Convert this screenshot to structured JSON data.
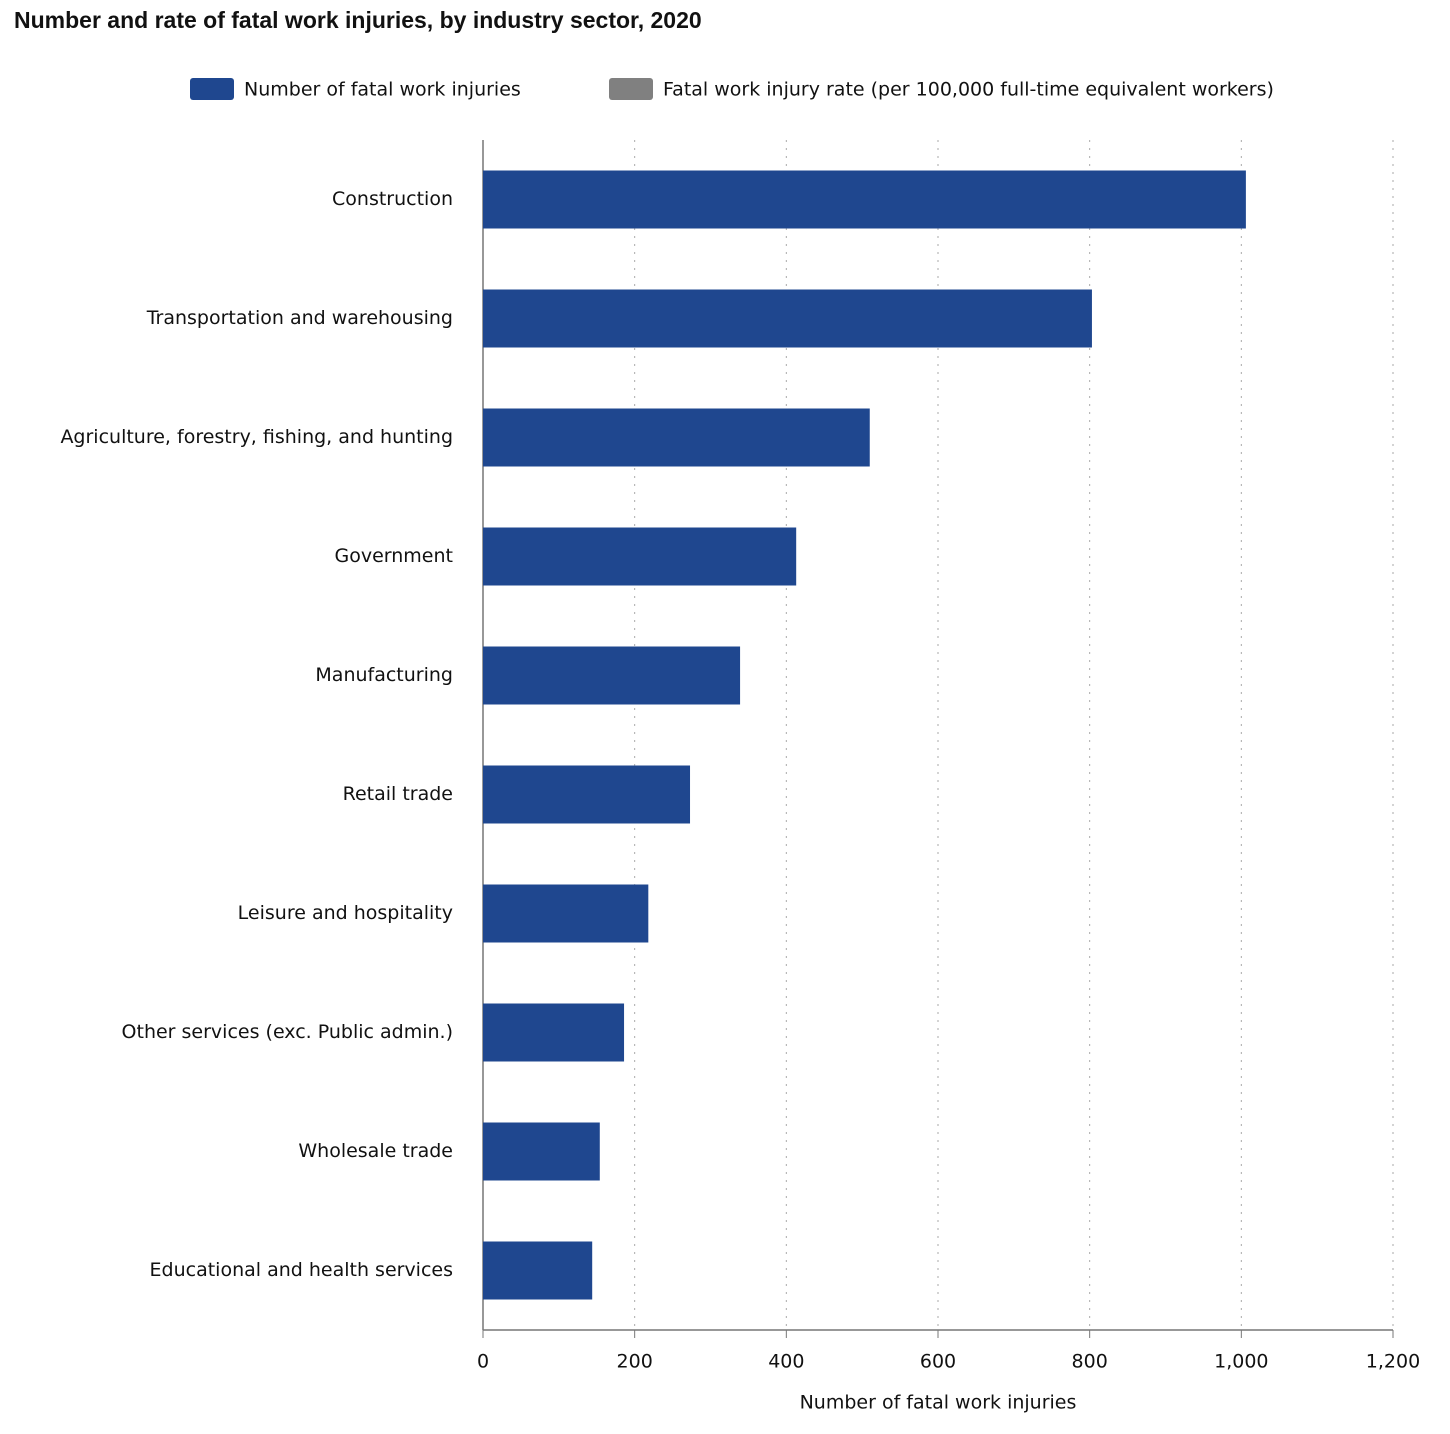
{
  "chart_data": {
    "type": "hbar",
    "title": "Number and rate of fatal work injuries, by industry sector, 2020",
    "categories": [
      "Construction",
      "Transportation and warehousing",
      "Agriculture, forestry, fishing, and hunting",
      "Government",
      "Manufacturing",
      "Retail trade",
      "Leisure and hospitality",
      "Other services (exc. Public admin.)",
      "Wholesale trade",
      "Educational and health services"
    ],
    "series": [
      {
        "name": "Number of fatal work injuries",
        "color": "#1f478f",
        "values": [
          1006,
          803,
          510,
          413,
          339,
          273,
          218,
          186,
          154,
          144
        ]
      },
      {
        "name": "Fatal work injury rate (per 100,000 full-time equivalent workers)",
        "color": "#808080",
        "hidden": true
      }
    ],
    "xlabel": "Number of fatal work injuries",
    "xlim": [
      0,
      1200
    ],
    "xticks": [
      0,
      200,
      400,
      600,
      800,
      {
        "value": 1000,
        "label": "1,000"
      },
      {
        "value": 1200,
        "label": "1,200"
      }
    ],
    "grid": true
  }
}
